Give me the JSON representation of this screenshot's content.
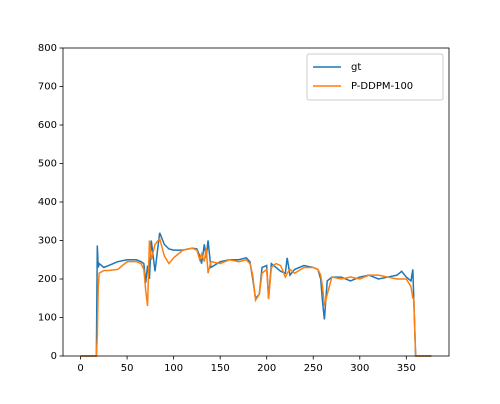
{
  "chart_data": {
    "type": "line",
    "x": [
      0,
      10,
      17,
      18,
      19,
      20,
      25,
      30,
      40,
      50,
      60,
      65,
      68,
      70,
      72,
      74,
      76,
      80,
      85,
      90,
      95,
      100,
      110,
      120,
      125,
      128,
      130,
      133,
      135,
      137,
      140,
      150,
      160,
      170,
      178,
      182,
      185,
      188,
      192,
      195,
      200,
      202,
      205,
      210,
      215,
      220,
      222,
      225,
      230,
      240,
      250,
      255,
      258,
      260,
      262,
      265,
      270,
      280,
      290,
      300,
      310,
      320,
      330,
      340,
      345,
      350,
      355,
      357,
      358,
      360,
      370,
      377
    ],
    "series": [
      {
        "name": "gt",
        "color": "#1f77b4",
        "values": [
          0,
          0,
          0,
          287,
          230,
          240,
          230,
          235,
          245,
          250,
          250,
          245,
          240,
          190,
          235,
          200,
          300,
          220,
          320,
          290,
          278,
          275,
          275,
          280,
          278,
          260,
          240,
          290,
          255,
          300,
          230,
          245,
          250,
          250,
          255,
          245,
          200,
          150,
          160,
          230,
          235,
          150,
          240,
          230,
          220,
          215,
          255,
          210,
          225,
          235,
          230,
          225,
          200,
          140,
          95,
          195,
          205,
          205,
          195,
          205,
          210,
          200,
          205,
          210,
          220,
          205,
          195,
          225,
          150,
          0,
          0,
          0
        ]
      },
      {
        "name": "P-DDPM-100",
        "color": "#ff7f0e",
        "values": [
          0,
          0,
          0,
          50,
          180,
          215,
          222,
          222,
          225,
          245,
          245,
          240,
          225,
          170,
          130,
          300,
          250,
          290,
          305,
          260,
          240,
          255,
          275,
          280,
          275,
          250,
          265,
          245,
          280,
          215,
          245,
          240,
          250,
          245,
          250,
          240,
          210,
          145,
          160,
          215,
          225,
          148,
          230,
          240,
          235,
          205,
          215,
          225,
          215,
          230,
          230,
          225,
          210,
          180,
          130,
          160,
          205,
          200,
          205,
          200,
          210,
          210,
          205,
          200,
          200,
          200,
          180,
          150,
          150,
          0,
          0,
          0
        ]
      }
    ],
    "xlim": [
      -18.85,
      395.85
    ],
    "xticks": [
      0,
      50,
      100,
      150,
      200,
      250,
      300,
      350
    ],
    "ylim": [
      0,
      800
    ],
    "yticks": [
      0,
      100,
      200,
      300,
      400,
      500,
      600,
      700,
      800
    ],
    "legend": "upper right"
  }
}
